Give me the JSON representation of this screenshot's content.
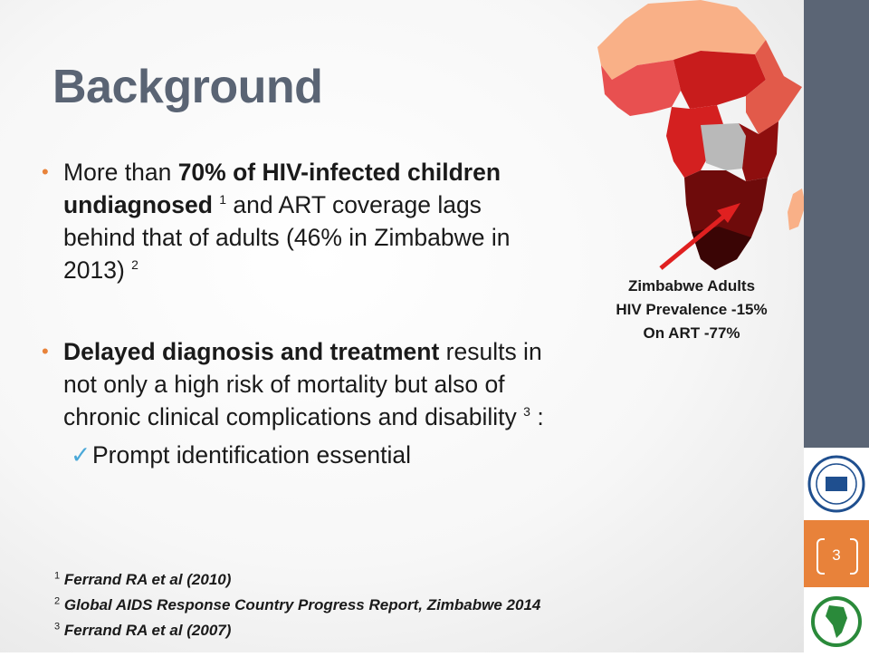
{
  "title": "Background",
  "bullet1": {
    "t1": "More than ",
    "bold": "70% of HIV-infected children undiagnosed",
    "ref1": "1",
    "t2": " and ART coverage lags behind that of adults (46% in Zimbabwe in 2013) ",
    "ref2": "2"
  },
  "bullet2": {
    "bold": "Delayed diagnosis and treatment",
    "t1": " results in not only a high risk of mortality but also of  chronic clinical complications and disability ",
    "ref": "3",
    "t2": " :"
  },
  "subbullet": "Prompt  identification essential",
  "map_caption": {
    "line1": "Zimbabwe Adults",
    "line2": "HIV Prevalence -15%",
    "line3": "On ART -77%"
  },
  "references": [
    {
      "num": "1",
      "text": "Ferrand  RA et al (2010)"
    },
    {
      "num": "2",
      "text": "Global AIDS Response Country Progress Report, Zimbabwe 2014"
    },
    {
      "num": "3",
      "text": "Ferrand  RA et al (2007)"
    }
  ],
  "page_number": "3",
  "colors": {
    "title": "#5a6474",
    "bullet_marker": "#e8833a",
    "check_mark": "#4aa8d8",
    "sidebar": "#5b6575",
    "page_box": "#e8823a",
    "arrow": "#e02020"
  },
  "icons": {
    "check": "check-icon",
    "logo_top": "lshtm-crest-logo",
    "logo_bottom": "africa-globe-logo"
  }
}
